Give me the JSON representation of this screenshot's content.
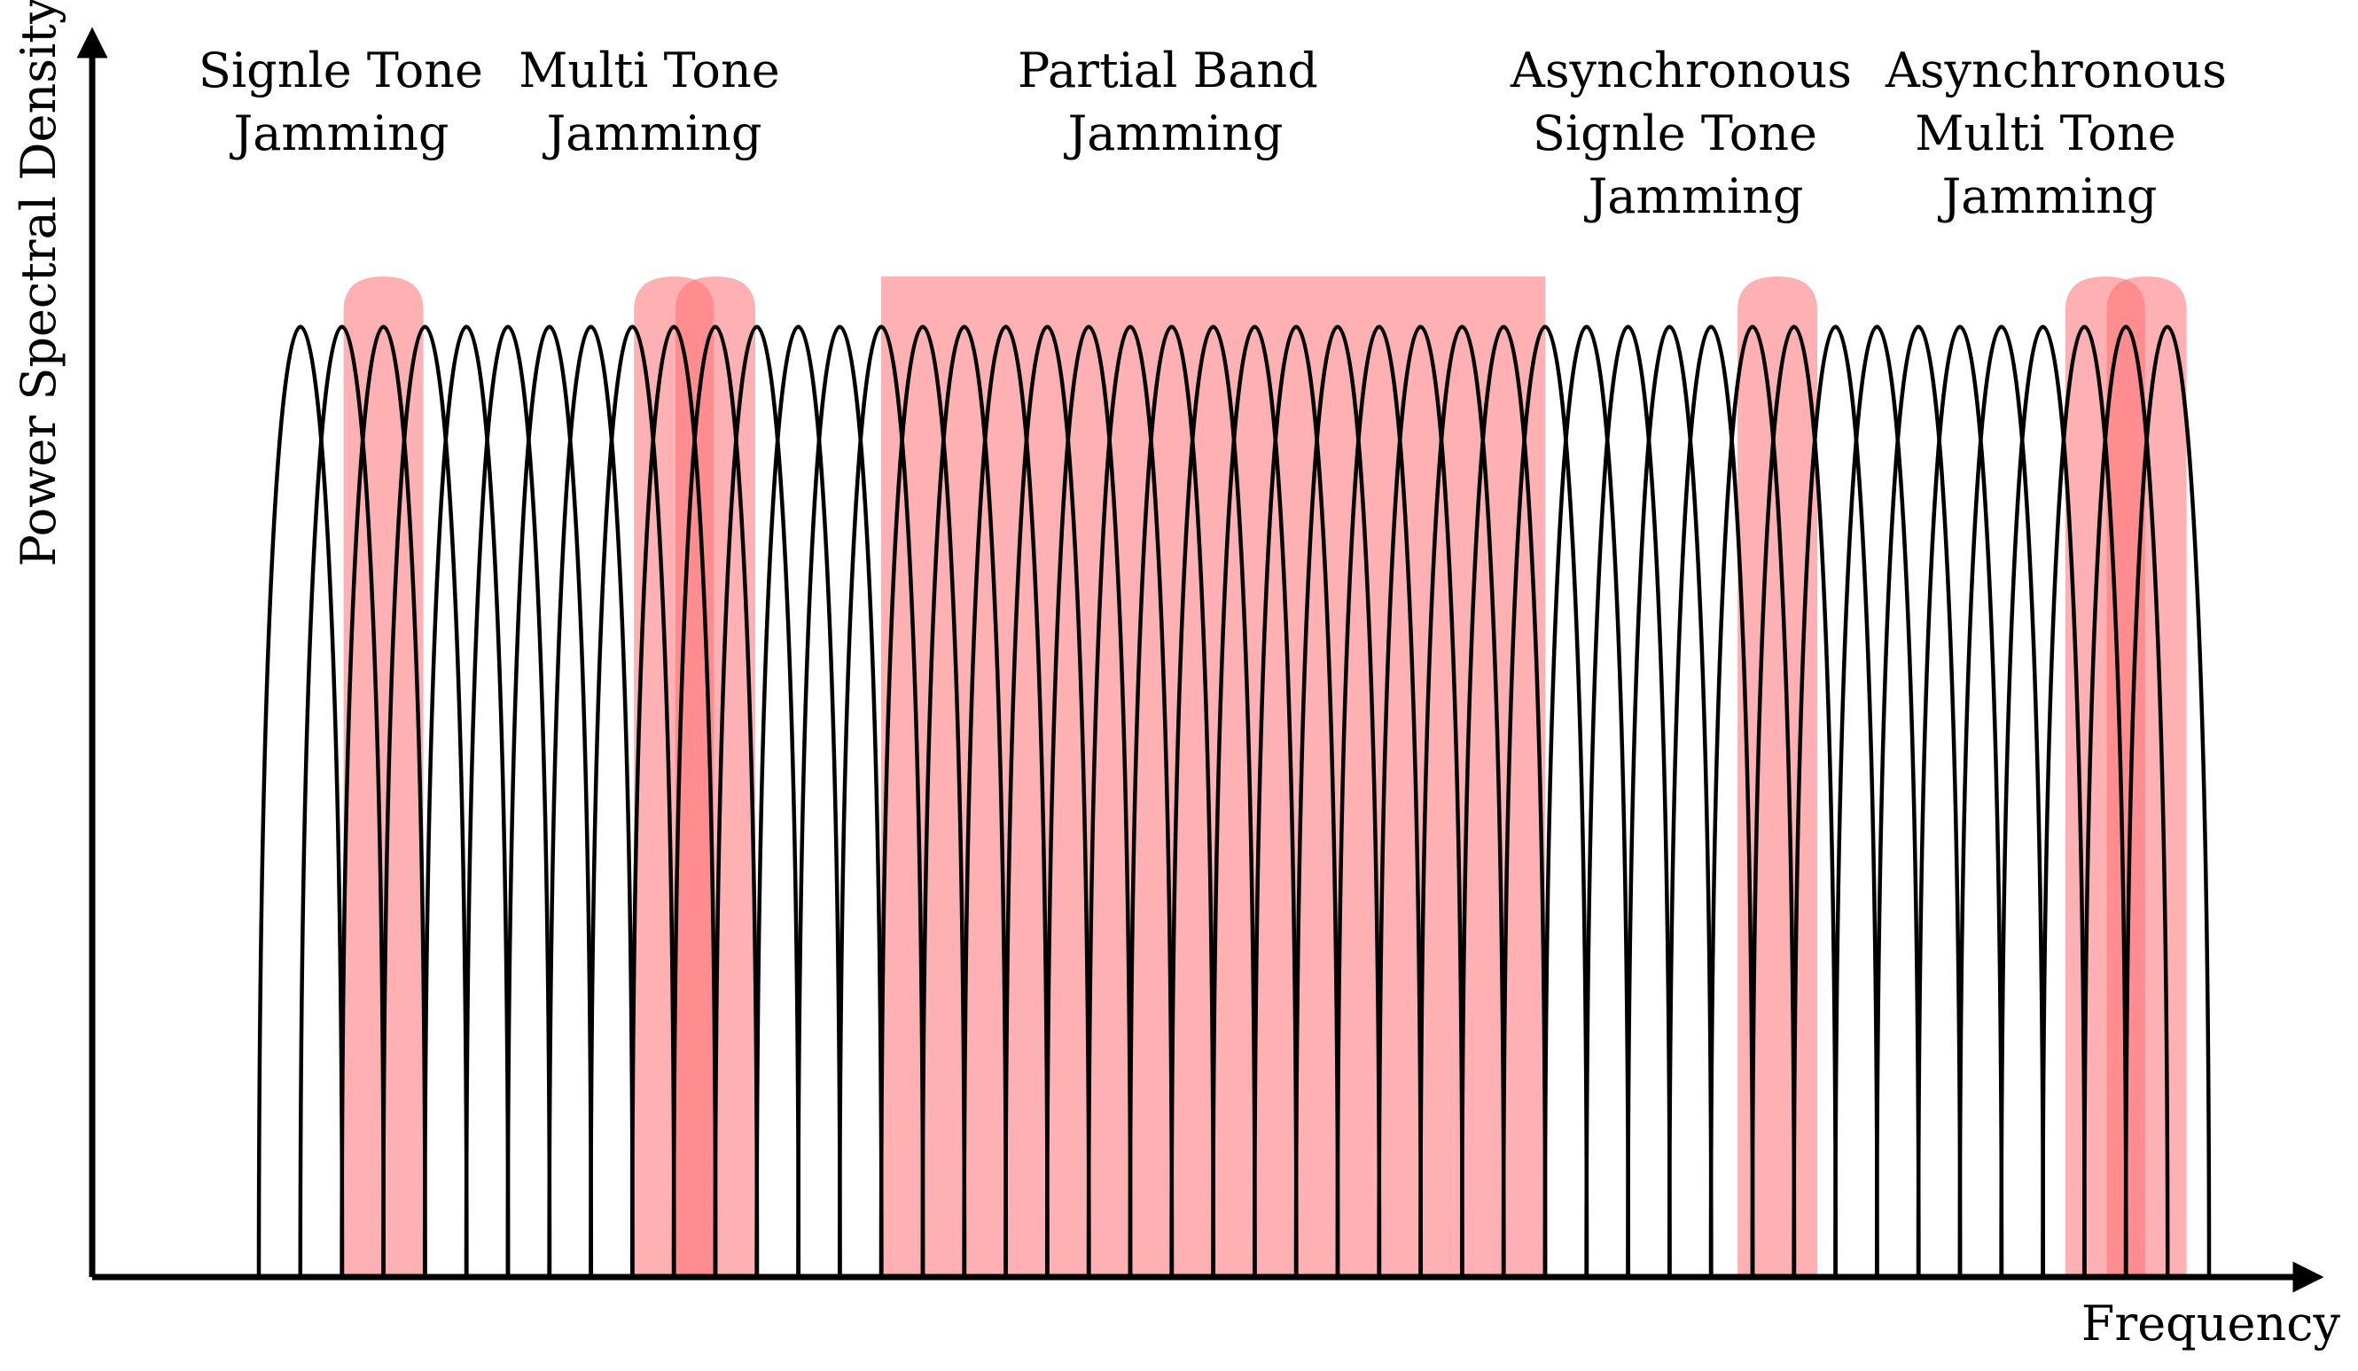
{
  "diagram": {
    "y_axis_label": "Power Spectral Density",
    "x_axis_label": "Frequency",
    "subcarriers": 46,
    "colors": {
      "curve": "#000000",
      "jam": "#ff6f73",
      "axis": "#000000",
      "background": "#ffffff"
    }
  },
  "jamming_types": [
    {
      "id": "single-tone",
      "lines": [
        "Signle Tone",
        "Jamming"
      ],
      "kind": "tone",
      "tones": [
        2
      ],
      "async": false
    },
    {
      "id": "multi-tone",
      "lines": [
        "Multi Tone",
        "Jamming"
      ],
      "kind": "tone",
      "tones": [
        9,
        10
      ],
      "async": false
    },
    {
      "id": "partial-band",
      "lines": [
        "Partial Band",
        "Jamming"
      ],
      "kind": "band",
      "band_start": 15,
      "band_end": 29
    },
    {
      "id": "async-single-tone",
      "lines": [
        "Asynchronous",
        "Signle Tone",
        "Jamming"
      ],
      "kind": "tone",
      "tones": [
        35.6
      ],
      "async": true
    },
    {
      "id": "async-multi-tone",
      "lines": [
        "Asynchronous",
        "Multi Tone",
        "Jamming"
      ],
      "kind": "tone",
      "tones": [
        43.5,
        44.5
      ],
      "async": true
    }
  ]
}
